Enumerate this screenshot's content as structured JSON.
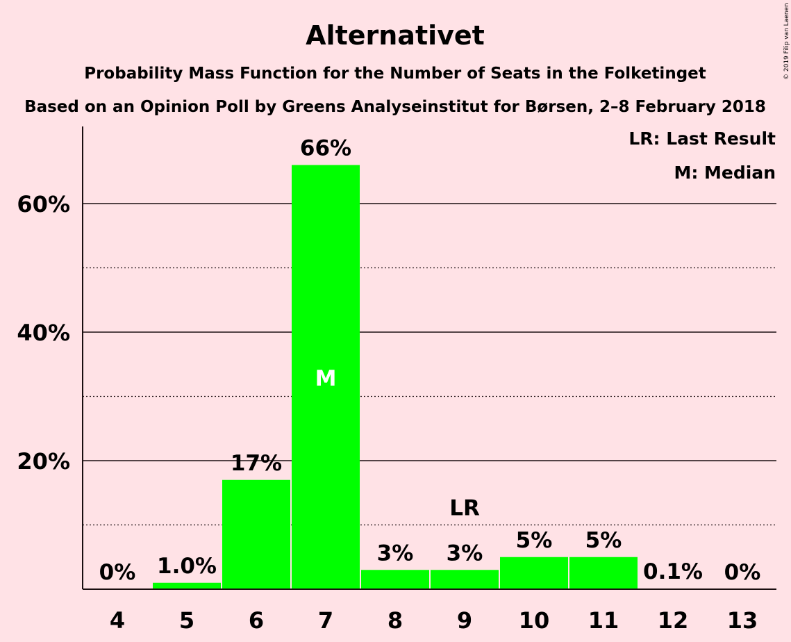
{
  "chart_data": {
    "type": "bar",
    "title": "Alternativet",
    "subtitle_1": "Probability Mass Function for the Number of Seats in the Folketinget",
    "subtitle_2": "Based on an Opinion Poll by Greens Analyseinstitut for Børsen, 2–8 February 2018",
    "categories": [
      "4",
      "5",
      "6",
      "7",
      "8",
      "9",
      "10",
      "11",
      "12",
      "13"
    ],
    "values": [
      0,
      1.0,
      17,
      66,
      3,
      3,
      5,
      5,
      0.1,
      0
    ],
    "data_labels": [
      "0%",
      "1.0%",
      "17%",
      "66%",
      "3%",
      "3%",
      "5%",
      "5%",
      "0.1%",
      "0%"
    ],
    "ylim": [
      0,
      72
    ],
    "y_major_ticks": [
      20,
      40,
      60
    ],
    "y_tick_labels": [
      "20%",
      "40%",
      "60%"
    ],
    "y_minor_gridlines": [
      10,
      30,
      50
    ],
    "bar_color": "#00ff00",
    "median_category": "7",
    "median_marker": "M",
    "last_result_category": "9",
    "last_result_marker": "LR",
    "legend": {
      "lr": "LR: Last Result",
      "m": "M: Median",
      "placement": "top-right"
    },
    "copyright": "© 2019 Filip van Laenen"
  }
}
